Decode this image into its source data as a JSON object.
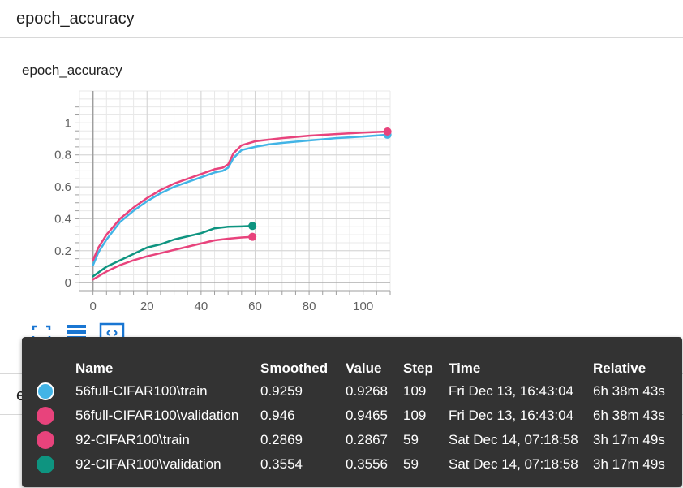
{
  "top_card": {
    "title": "epoch_accuracy"
  },
  "chart_card": {
    "title": "epoch_accuracy"
  },
  "bottom_card": {
    "title": "epoch_loss"
  },
  "toolbar": {
    "icons": [
      "fullscreen-icon",
      "toggle-log-scale-icon",
      "fit-domain-icon"
    ],
    "accent": "#1976d2"
  },
  "chart_data": {
    "type": "line",
    "title": "epoch_accuracy",
    "xlabel": "",
    "ylabel": "",
    "xlim": [
      -5,
      110
    ],
    "ylim": [
      -0.05,
      1.2
    ],
    "x_ticks": [
      0,
      20,
      40,
      60,
      80,
      100
    ],
    "x_tick_labels": [
      "0",
      "20",
      "40",
      "60",
      "80",
      "100"
    ],
    "y_ticks": [
      0,
      0.2,
      0.4,
      0.6,
      0.8,
      1
    ],
    "y_tick_labels": [
      "0",
      "0.2",
      "0.4",
      "0.6",
      "0.8",
      "1"
    ],
    "grid": true,
    "series": [
      {
        "name": "56full-CIFAR100\\train",
        "color": "#42b4e6",
        "x": [
          0,
          2,
          5,
          10,
          15,
          20,
          25,
          30,
          35,
          40,
          45,
          48,
          50,
          52,
          55,
          60,
          65,
          70,
          80,
          90,
          100,
          109
        ],
        "y": [
          0.11,
          0.19,
          0.27,
          0.38,
          0.45,
          0.51,
          0.56,
          0.6,
          0.63,
          0.66,
          0.69,
          0.7,
          0.72,
          0.78,
          0.83,
          0.85,
          0.865,
          0.875,
          0.89,
          0.905,
          0.915,
          0.926
        ]
      },
      {
        "name": "56full-CIFAR100\\validation",
        "color": "#e8437c",
        "x": [
          0,
          2,
          5,
          10,
          15,
          20,
          25,
          30,
          35,
          40,
          45,
          48,
          50,
          52,
          55,
          60,
          65,
          70,
          80,
          90,
          100,
          109
        ],
        "y": [
          0.14,
          0.22,
          0.3,
          0.4,
          0.47,
          0.53,
          0.58,
          0.62,
          0.65,
          0.68,
          0.71,
          0.72,
          0.74,
          0.81,
          0.86,
          0.885,
          0.895,
          0.905,
          0.92,
          0.93,
          0.94,
          0.946
        ]
      },
      {
        "name": "92-CIFAR100\\train",
        "color": "#e8437c",
        "x": [
          0,
          5,
          10,
          15,
          20,
          25,
          30,
          35,
          40,
          45,
          50,
          55,
          59
        ],
        "y": [
          0.02,
          0.07,
          0.11,
          0.14,
          0.165,
          0.185,
          0.205,
          0.225,
          0.245,
          0.265,
          0.275,
          0.283,
          0.287
        ]
      },
      {
        "name": "92-CIFAR100\\validation",
        "color": "#0e9480",
        "x": [
          0,
          5,
          10,
          15,
          20,
          25,
          30,
          35,
          40,
          45,
          50,
          55,
          59
        ],
        "y": [
          0.04,
          0.1,
          0.14,
          0.18,
          0.22,
          0.24,
          0.27,
          0.29,
          0.31,
          0.34,
          0.35,
          0.352,
          0.355
        ]
      }
    ]
  },
  "tooltip": {
    "headers": {
      "name": "Name",
      "smoothed": "Smoothed",
      "value": "Value",
      "step": "Step",
      "time": "Time",
      "relative": "Relative"
    },
    "rows": [
      {
        "color": "#42b4e6",
        "selected": true,
        "name": "56full-CIFAR100\\train",
        "smoothed": "0.9259",
        "value": "0.9268",
        "step": "109",
        "time": "Fri Dec 13, 16:43:04",
        "relative": "6h 38m 43s"
      },
      {
        "color": "#e8437c",
        "selected": false,
        "name": "56full-CIFAR100\\validation",
        "smoothed": "0.946",
        "value": "0.9465",
        "step": "109",
        "time": "Fri Dec 13, 16:43:04",
        "relative": "6h 38m 43s"
      },
      {
        "color": "#e8437c",
        "selected": false,
        "name": "92-CIFAR100\\train",
        "smoothed": "0.2869",
        "value": "0.2867",
        "step": "59",
        "time": "Sat Dec 14, 07:18:58",
        "relative": "3h 17m 49s"
      },
      {
        "color": "#0e9480",
        "selected": false,
        "name": "92-CIFAR100\\validation",
        "smoothed": "0.3554",
        "value": "0.3556",
        "step": "59",
        "time": "Sat Dec 14, 07:18:58",
        "relative": "3h 17m 49s"
      }
    ]
  }
}
